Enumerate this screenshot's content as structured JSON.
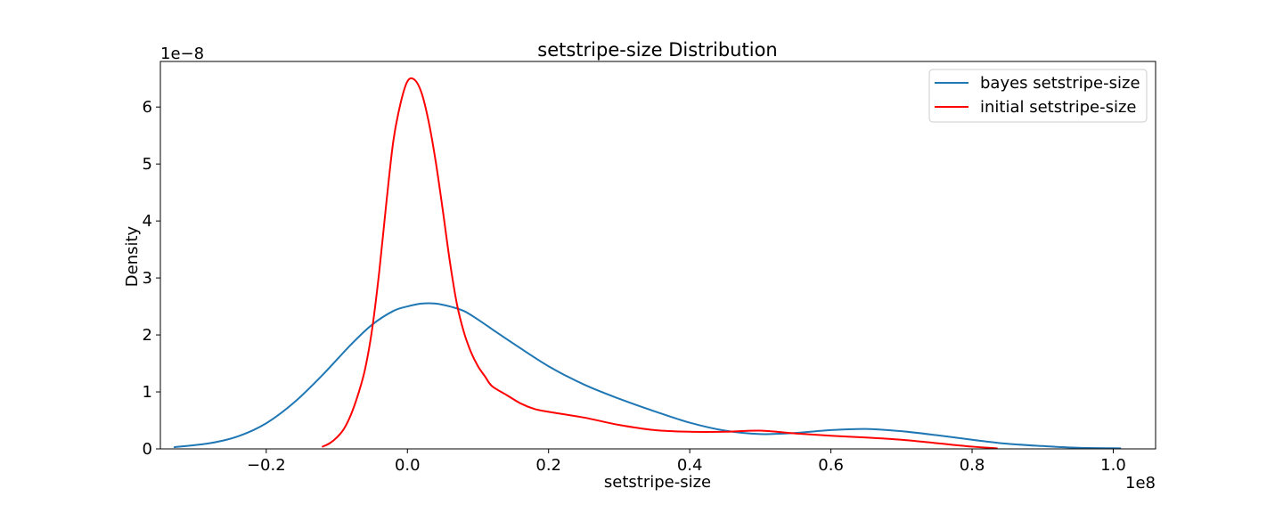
{
  "chart_data": {
    "type": "line",
    "title": "setstripe-size Distribution",
    "xlabel": "setstripe-size",
    "ylabel": "Density",
    "x_offset_label": "1e8",
    "y_offset_label": "1e−8",
    "xlim": [
      -0.35,
      1.06
    ],
    "ylim": [
      0,
      6.8
    ],
    "x_ticks": [
      -0.2,
      0.0,
      0.2,
      0.4,
      0.6,
      0.8,
      1.0
    ],
    "x_tick_labels": [
      "−0.2",
      "0.0",
      "0.2",
      "0.4",
      "0.6",
      "0.8",
      "1.0"
    ],
    "y_ticks": [
      0,
      1,
      2,
      3,
      4,
      5,
      6
    ],
    "y_tick_labels": [
      "0",
      "1",
      "2",
      "3",
      "4",
      "5",
      "6"
    ],
    "grid": false,
    "legend_position": "top-right",
    "series": [
      {
        "name": "bayes setstripe-size",
        "color": "#1f77b4",
        "x": [
          -0.33,
          -0.28,
          -0.24,
          -0.2,
          -0.16,
          -0.12,
          -0.08,
          -0.05,
          -0.02,
          0.0,
          0.02,
          0.04,
          0.06,
          0.08,
          0.1,
          0.12,
          0.15,
          0.2,
          0.25,
          0.3,
          0.35,
          0.4,
          0.45,
          0.5,
          0.55,
          0.6,
          0.65,
          0.7,
          0.75,
          0.8,
          0.85,
          0.9,
          0.95,
          1.01
        ],
        "y": [
          0.03,
          0.1,
          0.22,
          0.45,
          0.82,
          1.3,
          1.83,
          2.18,
          2.42,
          2.5,
          2.55,
          2.55,
          2.5,
          2.42,
          2.27,
          2.1,
          1.85,
          1.45,
          1.13,
          0.88,
          0.66,
          0.46,
          0.32,
          0.26,
          0.28,
          0.33,
          0.35,
          0.31,
          0.24,
          0.16,
          0.09,
          0.05,
          0.02,
          0.01
        ]
      },
      {
        "name": "initial setstripe-size",
        "color": "#ff0000",
        "x": [
          -0.12,
          -0.11,
          -0.1,
          -0.09,
          -0.08,
          -0.07,
          -0.06,
          -0.05,
          -0.04,
          -0.03,
          -0.02,
          -0.01,
          0.0,
          0.01,
          0.02,
          0.03,
          0.04,
          0.05,
          0.06,
          0.07,
          0.08,
          0.09,
          0.1,
          0.11,
          0.12,
          0.14,
          0.16,
          0.18,
          0.2,
          0.25,
          0.3,
          0.35,
          0.4,
          0.45,
          0.5,
          0.55,
          0.6,
          0.65,
          0.7,
          0.75,
          0.8,
          0.835
        ],
        "y": [
          0.04,
          0.1,
          0.2,
          0.35,
          0.6,
          0.95,
          1.4,
          2.1,
          3.1,
          4.3,
          5.4,
          6.05,
          6.45,
          6.48,
          6.25,
          5.75,
          5.05,
          4.2,
          3.3,
          2.55,
          2.05,
          1.7,
          1.45,
          1.27,
          1.1,
          0.95,
          0.8,
          0.7,
          0.65,
          0.55,
          0.42,
          0.33,
          0.3,
          0.3,
          0.32,
          0.27,
          0.23,
          0.2,
          0.16,
          0.1,
          0.04,
          0.01
        ]
      }
    ]
  }
}
